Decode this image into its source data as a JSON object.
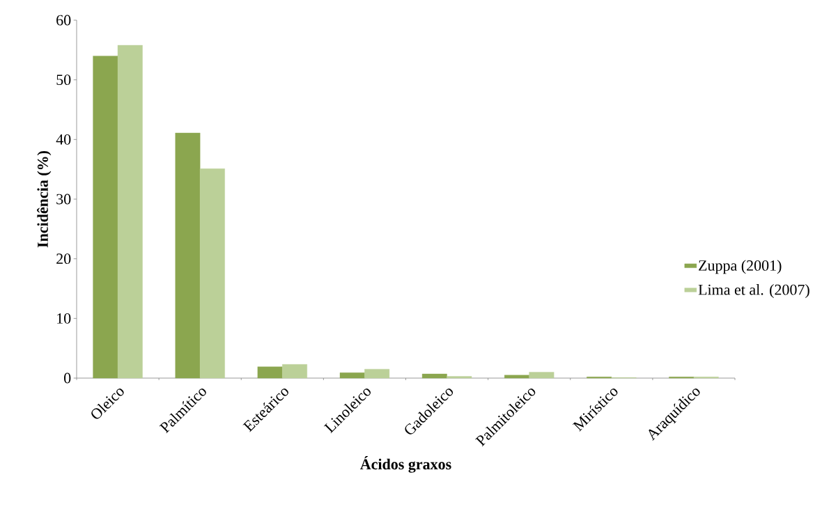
{
  "chart_data": {
    "type": "bar",
    "xlabel": "Ácidos graxos",
    "ylabel": "Incidência (%)",
    "categories": [
      "Oleico",
      "Palmítico",
      "Esteárico",
      "Linoleico",
      "Gadoleico",
      "Palmitoleico",
      "Mirístico",
      "Araquídico"
    ],
    "series": [
      {
        "name": "Zuppa (2001)",
        "color": "#8ba64f",
        "values": [
          54.0,
          41.1,
          1.9,
          0.9,
          0.7,
          0.5,
          0.2,
          0.2
        ]
      },
      {
        "name": "Lima et al. (2007)",
        "color": "#bbd098",
        "values": [
          55.8,
          35.1,
          2.3,
          1.5,
          0.3,
          1.0,
          0.1,
          0.2
        ]
      }
    ],
    "ylim": [
      0,
      60
    ],
    "yticks": [
      0,
      10,
      20,
      30,
      40,
      50,
      60
    ],
    "grid": false,
    "legend": "right"
  }
}
